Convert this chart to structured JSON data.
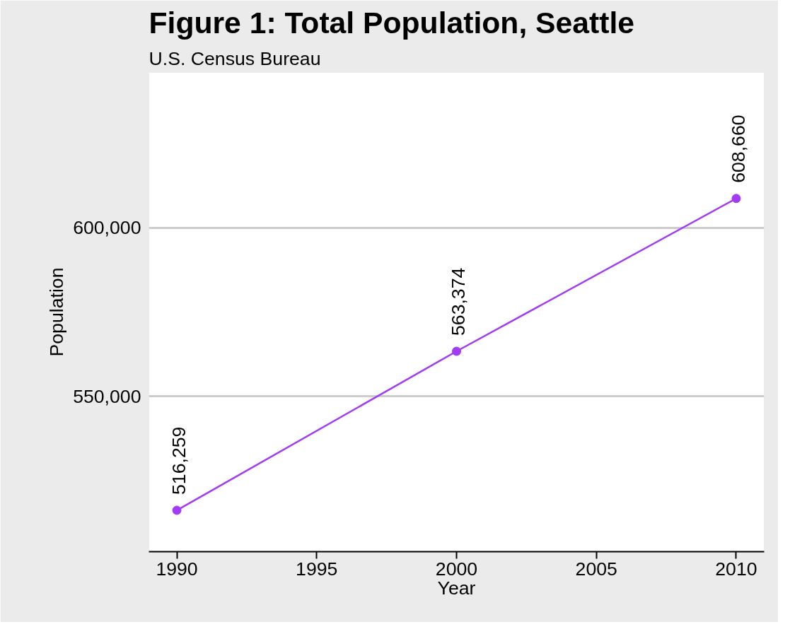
{
  "chart_data": {
    "type": "line",
    "title": "Figure 1: Total Population, Seattle",
    "subtitle": "U.S. Census Bureau",
    "xlabel": "Year",
    "ylabel": "Population",
    "x": [
      1990,
      2000,
      2010
    ],
    "series": [
      {
        "color": "#a23cf4",
        "values": [
          516259,
          563374,
          608660
        ],
        "value_labels": [
          "516,259",
          "563,374",
          "608,660"
        ]
      }
    ],
    "xlim": [
      1989,
      2011
    ],
    "xticks": [
      1990,
      1995,
      2000,
      2005,
      2010
    ],
    "ylim": [
      504000,
      646000
    ],
    "yticks": [
      {
        "value": 550000,
        "label": "550,000"
      },
      {
        "value": 600000,
        "label": "600,000"
      }
    ],
    "grid": "y",
    "marker": "circle",
    "line_style": "solid"
  }
}
